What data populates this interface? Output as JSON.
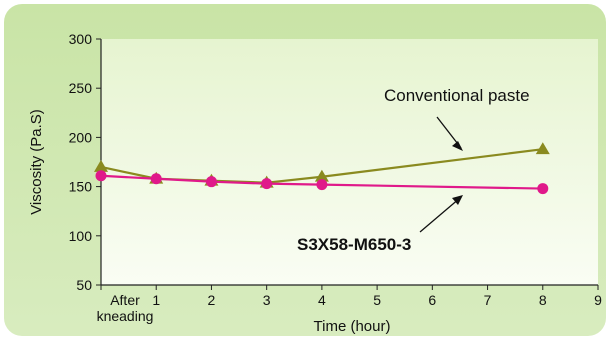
{
  "chart_data": {
    "type": "line",
    "xlabel": "Time (hour)",
    "ylabel": "Viscosity (Pa.S)",
    "xlim": [
      0,
      9
    ],
    "ylim": [
      50,
      300
    ],
    "x_ticks": [
      1,
      2,
      3,
      4,
      5,
      6,
      7,
      8,
      9
    ],
    "x_zero_label": [
      "After",
      "kneading"
    ],
    "y_ticks": [
      50,
      100,
      150,
      200,
      250,
      300
    ],
    "grid": false,
    "series": [
      {
        "name": "Conventional paste",
        "marker": "triangle",
        "color": "#8a8a1f",
        "x": [
          0,
          1,
          2,
          3,
          4,
          8
        ],
        "y": [
          170,
          158,
          156,
          154,
          160,
          188
        ]
      },
      {
        "name": "S3X58-M650-3",
        "marker": "circle",
        "color": "#e0198a",
        "x": [
          0,
          1,
          2,
          3,
          4,
          8
        ],
        "y": [
          161,
          158,
          155,
          153,
          152,
          148
        ]
      }
    ]
  },
  "colors": {
    "background_outer": "#cfe8b0",
    "plot_top": "#eaf6d8",
    "plot_bottom": "#f9fcf3",
    "axis": "#222222"
  }
}
